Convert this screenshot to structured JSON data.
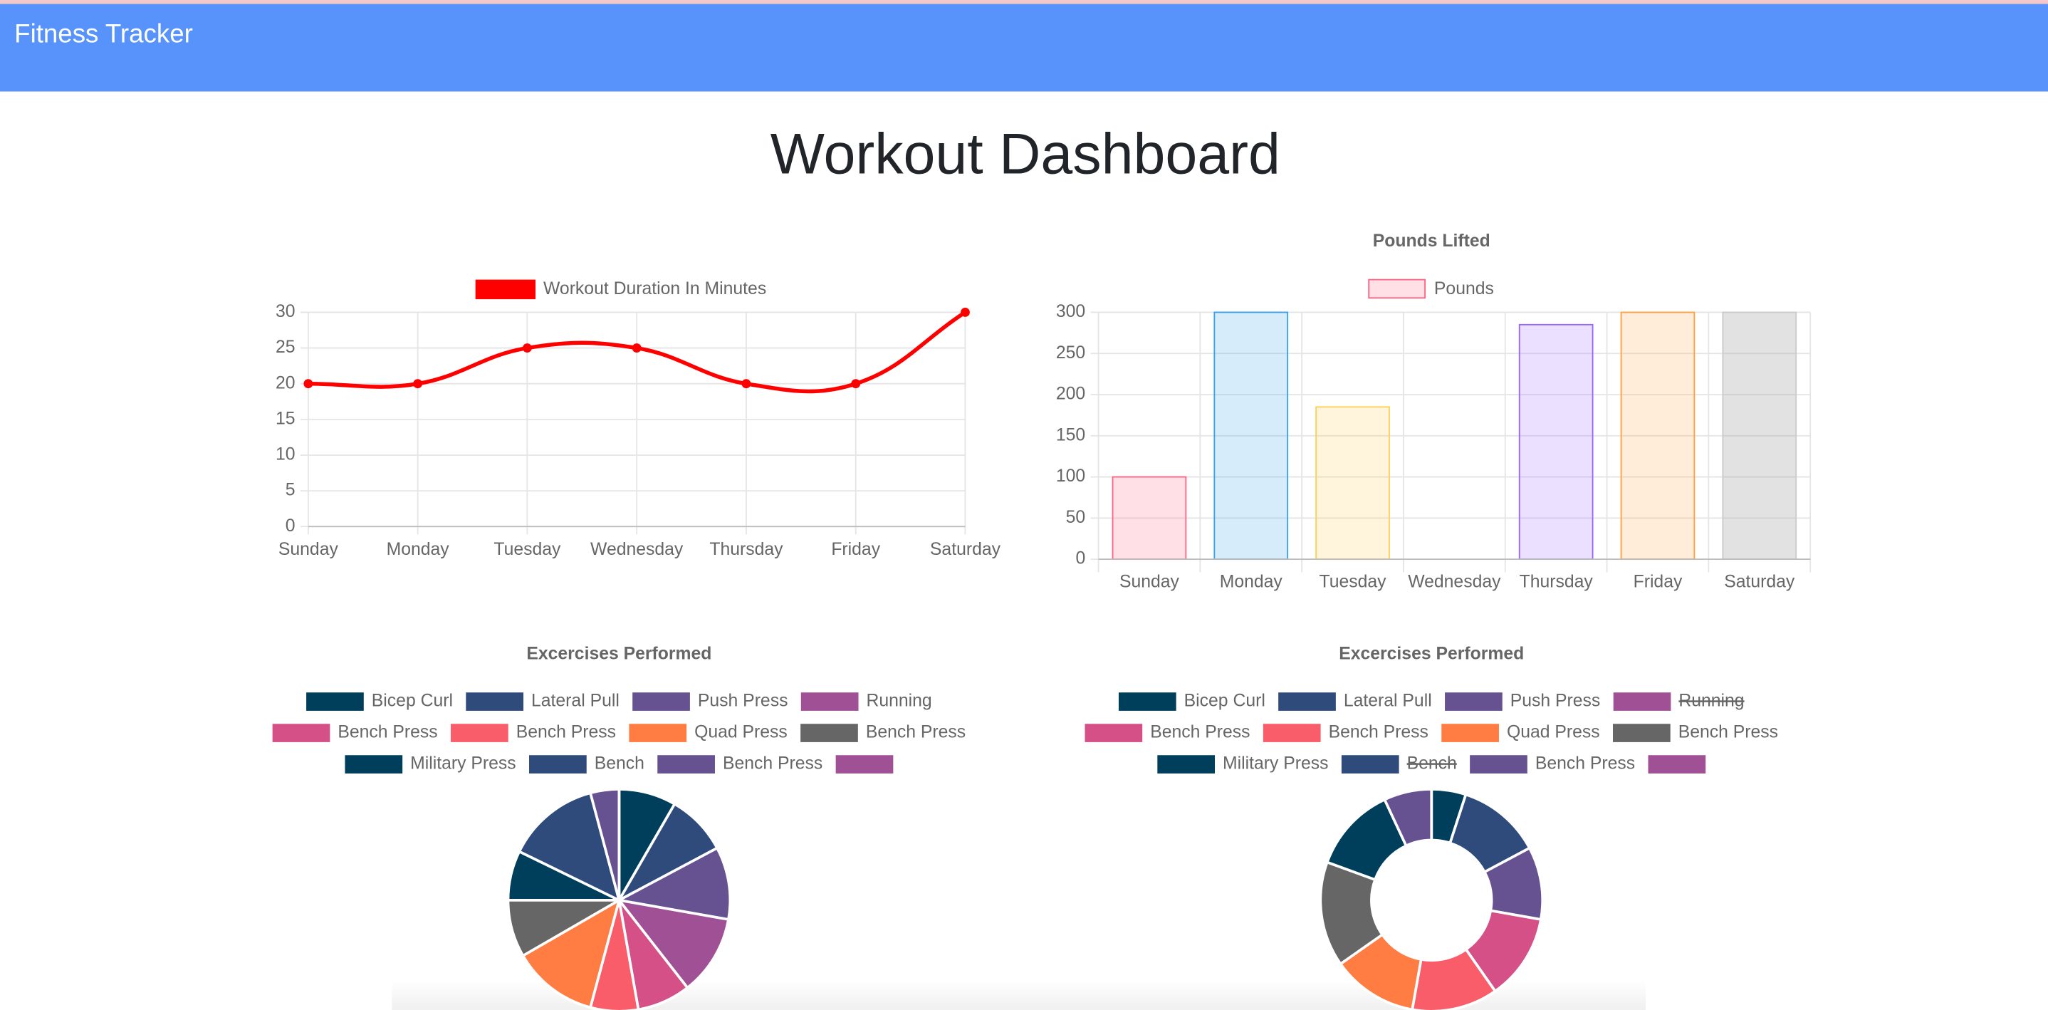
{
  "header": {
    "title": "Fitness Tracker"
  },
  "heading": "Workout Dashboard",
  "chart_data": [
    {
      "type": "line",
      "legend": "Workout Duration In Minutes",
      "color": "#ff0000",
      "categories": [
        "Sunday",
        "Monday",
        "Tuesday",
        "Wednesday",
        "Thursday",
        "Friday",
        "Saturday"
      ],
      "values": [
        20,
        20,
        25,
        25,
        20,
        20,
        30
      ],
      "ylim": [
        0,
        30
      ],
      "yticks": [
        0,
        5,
        10,
        15,
        20,
        25,
        30
      ],
      "grid": true
    },
    {
      "type": "bar",
      "title": "Pounds Lifted",
      "legend": "Pounds",
      "categories": [
        "Sunday",
        "Monday",
        "Tuesday",
        "Wednesday",
        "Thursday",
        "Friday",
        "Saturday"
      ],
      "values": [
        100,
        300,
        185,
        0,
        285,
        300,
        300
      ],
      "colors": [
        "rgba(255,99,132,0.2)",
        "rgba(54,162,235,0.2)",
        "rgba(255,206,86,0.2)",
        "rgba(75,192,192,0.2)",
        "rgba(153,102,255,0.2)",
        "rgba(255,159,64,0.2)",
        "rgba(160,160,160,0.3)"
      ],
      "border_colors": [
        "rgb(255,99,132)",
        "rgb(54,162,235)",
        "rgb(255,206,86)",
        "rgb(75,192,192)",
        "rgb(153,102,255)",
        "rgb(255,159,64)",
        "rgb(201,203,207)"
      ],
      "ylim": [
        0,
        300
      ],
      "yticks": [
        0,
        50,
        100,
        150,
        200,
        250,
        300
      ],
      "grid": true
    },
    {
      "type": "pie",
      "title": "Excercises Performed",
      "categories": [
        "Bicep Curl",
        "Lateral Pull",
        "Push Press",
        "Running",
        "Bench Press",
        "Bench Press",
        "Quad Press",
        "Bench Press",
        "Military Press",
        "Bench",
        "Bench Press",
        null
      ],
      "values": [
        30,
        32,
        38,
        42,
        28,
        25,
        45,
        30,
        26,
        49,
        15,
        0
      ],
      "colors": [
        "#003f5c",
        "#2f4b7c",
        "#665191",
        "#a05195",
        "#d45087",
        "#f95d6a",
        "#ff7c43",
        "#666666",
        "#003f5c",
        "#2f4b7c",
        "#665191",
        "#a05195"
      ],
      "hidden": []
    },
    {
      "type": "doughnut",
      "title": "Excercises Performed",
      "categories": [
        "Bicep Curl",
        "Lateral Pull",
        "Push Press",
        "Running",
        "Bench Press",
        "Bench Press",
        "Quad Press",
        "Bench Press",
        "Military Press",
        "Bench",
        "Bench Press",
        null
      ],
      "values": [
        18,
        44,
        38,
        null,
        45,
        45,
        45,
        55,
        45,
        null,
        25,
        0
      ],
      "colors": [
        "#003f5c",
        "#2f4b7c",
        "#665191",
        "#a05195",
        "#d45087",
        "#f95d6a",
        "#ff7c43",
        "#666666",
        "#003f5c",
        "#2f4b7c",
        "#665191",
        "#a05195"
      ],
      "hidden": [
        3,
        9
      ]
    }
  ]
}
